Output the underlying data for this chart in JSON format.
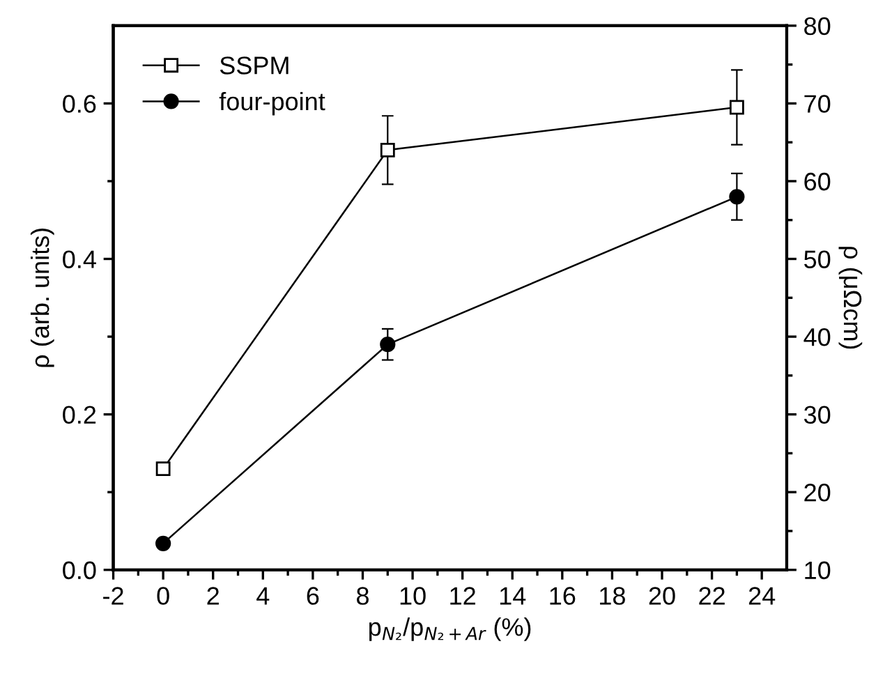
{
  "chart_data": {
    "type": "line",
    "xlabel": "p$_{N₂}$/p$_{N₂+Ar}$ (%)",
    "ylabel": "ρ (arb. units)",
    "y2label": "ρ (μΩcm)",
    "x": [
      0,
      9,
      23
    ],
    "series": [
      {
        "name": "SSPM",
        "color": "#000000",
        "marker": "square",
        "values": [
          0.13,
          0.54,
          0.595
        ],
        "errors": [
          0.008,
          0.044,
          0.048
        ]
      },
      {
        "name": "four-point",
        "color": "#000000",
        "marker": "circle",
        "axis": "y2",
        "values": [
          13.4,
          39,
          58
        ],
        "errors": [
          0.5,
          2,
          3
        ]
      }
    ],
    "xlim": [
      -2,
      25
    ],
    "xticks": [
      -2,
      0,
      2,
      4,
      6,
      8,
      10,
      12,
      14,
      16,
      18,
      20,
      22,
      24
    ],
    "ylim": [
      0,
      0.7
    ],
    "yticks": [
      {
        "value": 0,
        "label": "0.0"
      },
      0.2,
      0.4,
      0.6
    ],
    "y2lim": [
      10,
      80
    ],
    "y2ticks": [
      10,
      20,
      30,
      40,
      50,
      60,
      70,
      80
    ],
    "legend": "top left",
    "grid": false,
    "line_style": "solid"
  }
}
